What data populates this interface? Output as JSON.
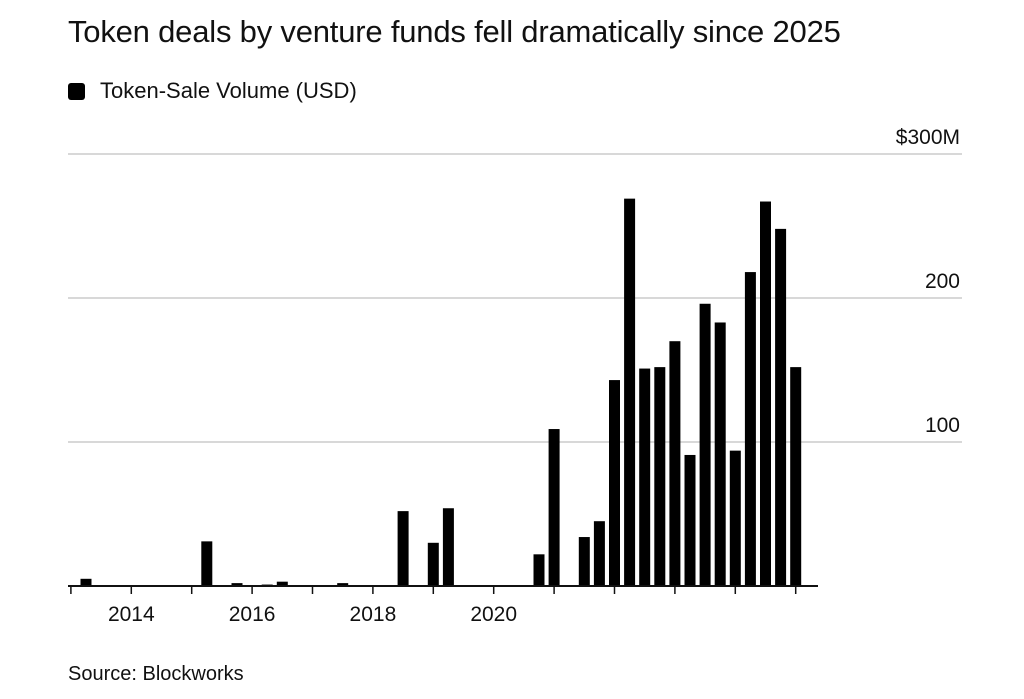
{
  "title": "Token deals by venture funds fell dramatically since 2025",
  "legend": {
    "label": "Token-Sale Volume (USD)",
    "color": "#000000"
  },
  "source": "Source: Blockworks",
  "chart_data": {
    "type": "bar",
    "title": "Token deals by venture funds fell dramatically since 2025",
    "xlabel": "",
    "ylabel": "",
    "ylim": [
      0,
      300
    ],
    "yunit": "USD millions",
    "y_ticks": [
      {
        "value": 100,
        "label": "100"
      },
      {
        "value": 200,
        "label": "200"
      },
      {
        "value": 300,
        "label": "$300M"
      }
    ],
    "x_ticks": [
      {
        "value": 2014,
        "label": "2014"
      },
      {
        "value": 2016,
        "label": "2016"
      },
      {
        "value": 2018,
        "label": "2018"
      },
      {
        "value": 2020,
        "label": "2020"
      }
    ],
    "grid": true,
    "legend_position": "top-left",
    "series": [
      {
        "name": "Token-Sale Volume (USD)",
        "color": "#000000",
        "points": [
          {
            "x": 2013.25,
            "y": 5
          },
          {
            "x": 2015.25,
            "y": 31
          },
          {
            "x": 2015.75,
            "y": 2
          },
          {
            "x": 2016.25,
            "y": 1
          },
          {
            "x": 2016.5,
            "y": 3
          },
          {
            "x": 2017.5,
            "y": 2
          },
          {
            "x": 2018.5,
            "y": 52
          },
          {
            "x": 2019.0,
            "y": 30
          },
          {
            "x": 2019.25,
            "y": 54
          },
          {
            "x": 2020.75,
            "y": 22
          },
          {
            "x": 2021.0,
            "y": 109
          },
          {
            "x": 2021.5,
            "y": 34
          },
          {
            "x": 2021.75,
            "y": 45
          },
          {
            "x": 2022.0,
            "y": 143
          },
          {
            "x": 2022.25,
            "y": 269
          },
          {
            "x": 2022.5,
            "y": 151
          },
          {
            "x": 2022.75,
            "y": 152
          },
          {
            "x": 2023.0,
            "y": 170
          },
          {
            "x": 2023.25,
            "y": 91
          },
          {
            "x": 2023.5,
            "y": 196
          },
          {
            "x": 2023.75,
            "y": 183
          },
          {
            "x": 2024.0,
            "y": 94
          },
          {
            "x": 2024.25,
            "y": 218
          },
          {
            "x": 2024.5,
            "y": 267
          },
          {
            "x": 2024.75,
            "y": 248
          },
          {
            "x": 2025.0,
            "y": 152
          }
        ]
      }
    ]
  }
}
